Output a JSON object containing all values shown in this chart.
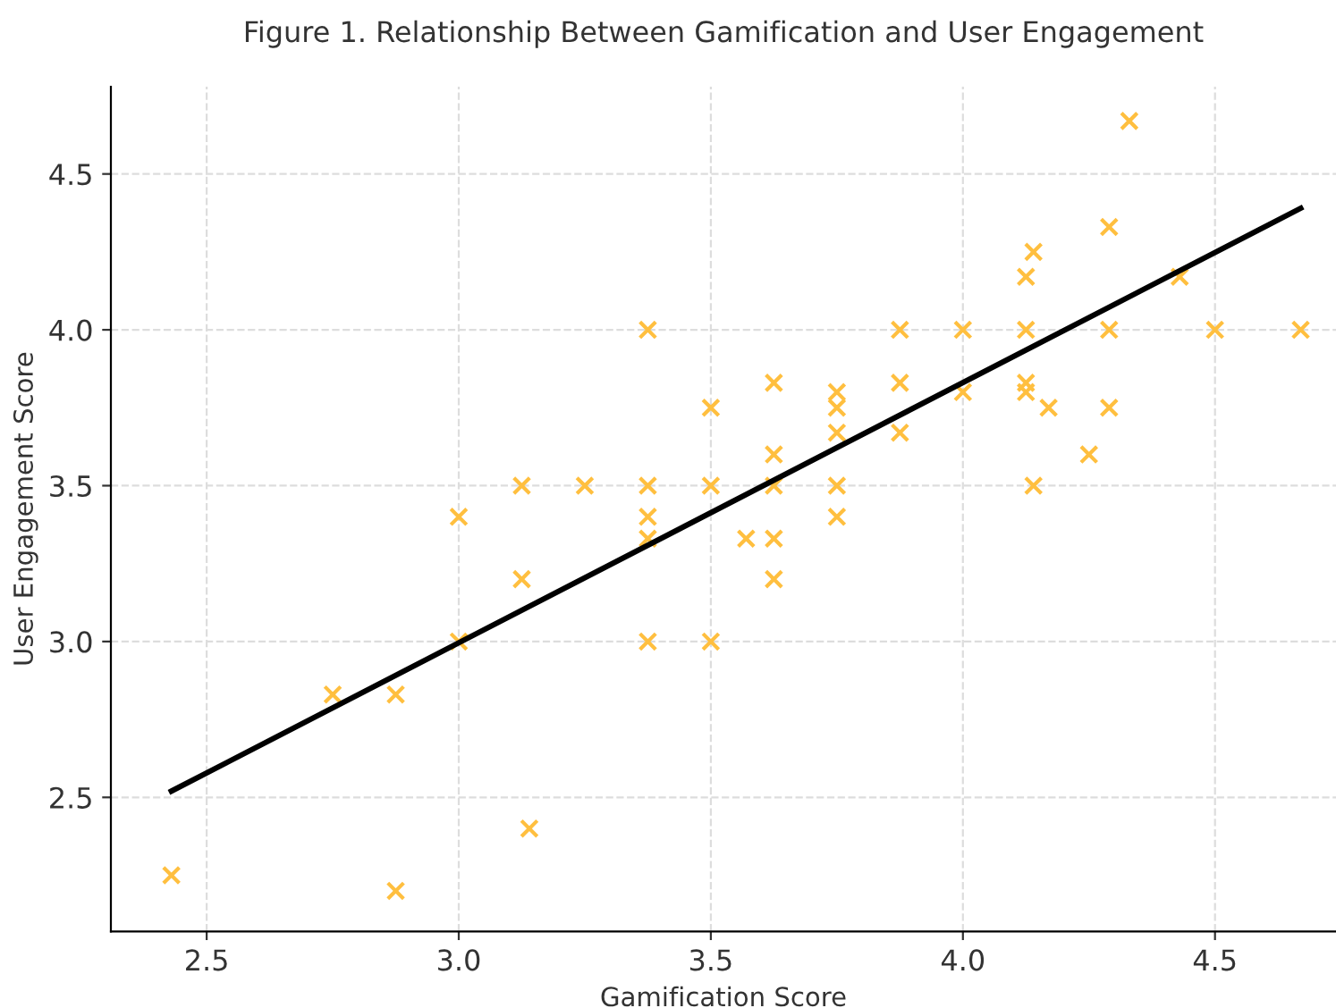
{
  "chart_data": {
    "type": "scatter",
    "title": "Figure 1. Relationship Between Gamification and User Engagement",
    "xlabel": "Gamification Score",
    "ylabel": "User Engagement Score",
    "xlim": [
      2.31,
      4.74
    ],
    "ylim": [
      2.07,
      4.78
    ],
    "xticks": [
      2.5,
      {
        "value": 3,
        "label": "3.0"
      },
      3.5,
      {
        "value": 4,
        "label": "4.0"
      },
      4.5
    ],
    "yticks": [
      2.5,
      {
        "value": 3,
        "label": "3.0"
      },
      3.5,
      {
        "value": 4,
        "label": "4.0"
      },
      4.5
    ],
    "grid": true,
    "series": [
      {
        "color": "#ffbf3f",
        "marker": "cross",
        "x": [
          2.43,
          2.75,
          2.875,
          2.875,
          3.0,
          3.0,
          3.125,
          3.125,
          3.14,
          3.25,
          3.375,
          3.375,
          3.375,
          3.375,
          3.375,
          3.5,
          3.5,
          3.5,
          3.57,
          3.625,
          3.625,
          3.625,
          3.625,
          3.625,
          3.75,
          3.75,
          3.75,
          3.75,
          3.75,
          3.875,
          3.875,
          3.875,
          4.0,
          4.0,
          4.125,
          4.14,
          4.125,
          4.125,
          4.125,
          4.17,
          4.14,
          4.25,
          4.29,
          4.29,
          4.29,
          4.33,
          4.43,
          4.5,
          4.67
        ],
        "values": [
          2.25,
          2.83,
          2.83,
          2.2,
          3.4,
          3.0,
          3.5,
          3.2,
          2.4,
          3.5,
          4.0,
          3.5,
          3.4,
          3.33,
          3.0,
          3.75,
          3.5,
          3.0,
          3.33,
          3.83,
          3.6,
          3.5,
          3.33,
          3.2,
          3.8,
          3.75,
          3.67,
          3.5,
          3.4,
          4.0,
          3.83,
          3.67,
          4.0,
          3.8,
          4.17,
          4.25,
          4.0,
          3.83,
          3.8,
          3.75,
          3.5,
          3.6,
          4.33,
          4.0,
          3.75,
          4.67,
          4.17,
          4.0,
          4.0
        ]
      },
      {
        "type": "line",
        "color": "#000000",
        "line_style": "solid",
        "x": [
          2.43,
          4.67
        ],
        "values": [
          2.52,
          4.39
        ]
      }
    ]
  }
}
